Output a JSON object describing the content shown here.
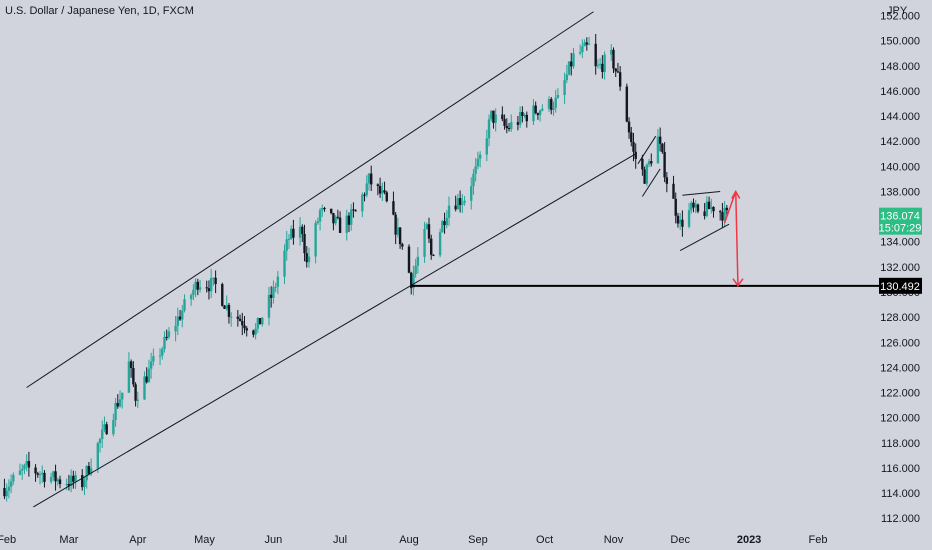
{
  "chart_data": {
    "type": "candlestick",
    "title": "U.S. Dollar / Japanese Yen, 1D, FXCM",
    "currency": "JPY",
    "ylim": [
      111.3,
      152.6
    ],
    "y_ticks": [
      112,
      114,
      116,
      118,
      120,
      122,
      124,
      126,
      128,
      130,
      132,
      134,
      136,
      138,
      140,
      142,
      144,
      146,
      148,
      150,
      152
    ],
    "x_ticks": [
      {
        "label": "Feb",
        "date": "2022-02-01",
        "bold": false
      },
      {
        "label": "Mar",
        "date": "2022-03-01",
        "bold": false
      },
      {
        "label": "Apr",
        "date": "2022-04-01",
        "bold": false
      },
      {
        "label": "May",
        "date": "2022-05-01",
        "bold": false
      },
      {
        "label": "Jun",
        "date": "2022-06-01",
        "bold": false
      },
      {
        "label": "Jul",
        "date": "2022-07-01",
        "bold": false
      },
      {
        "label": "Aug",
        "date": "2022-08-01",
        "bold": false
      },
      {
        "label": "Sep",
        "date": "2022-09-01",
        "bold": false
      },
      {
        "label": "Oct",
        "date": "2022-10-01",
        "bold": false
      },
      {
        "label": "Nov",
        "date": "2022-11-01",
        "bold": false
      },
      {
        "label": "Dec",
        "date": "2022-12-01",
        "bold": false
      },
      {
        "label": "2023",
        "date": "2023-01-01",
        "bold": true
      },
      {
        "label": "Feb",
        "date": "2023-02-01",
        "bold": false
      }
    ],
    "x_range": [
      "2022-01-29",
      "2023-02-28"
    ],
    "price_path": [
      [
        "2022-01-31",
        114.4
      ],
      [
        "2022-02-10",
        116.0
      ],
      [
        "2022-02-25",
        115.0
      ],
      [
        "2022-03-07",
        114.8
      ],
      [
        "2022-03-14",
        117.8
      ],
      [
        "2022-03-25",
        122.0
      ],
      [
        "2022-03-28",
        124.3
      ],
      [
        "2022-03-31",
        121.7
      ],
      [
        "2022-04-08",
        124.3
      ],
      [
        "2022-04-20",
        128.2
      ],
      [
        "2022-04-28",
        130.8
      ],
      [
        "2022-05-06",
        130.5
      ],
      [
        "2022-05-12",
        128.5
      ],
      [
        "2022-05-24",
        126.9
      ],
      [
        "2022-06-01",
        130.0
      ],
      [
        "2022-06-08",
        134.3
      ],
      [
        "2022-06-14",
        135.0
      ],
      [
        "2022-06-16",
        132.2
      ],
      [
        "2022-06-22",
        136.4
      ],
      [
        "2022-07-01",
        135.2
      ],
      [
        "2022-07-08",
        136.3
      ],
      [
        "2022-07-14",
        138.9
      ],
      [
        "2022-07-21",
        137.4
      ],
      [
        "2022-07-28",
        134.2
      ],
      [
        "2022-08-02",
        130.9
      ],
      [
        "2022-08-09",
        135.0
      ],
      [
        "2022-08-11",
        132.9
      ],
      [
        "2022-08-19",
        137.0
      ],
      [
        "2022-08-26",
        137.5
      ],
      [
        "2022-09-01",
        140.0
      ],
      [
        "2022-09-07",
        144.0
      ],
      [
        "2022-09-14",
        143.0
      ],
      [
        "2022-09-22",
        144.0
      ],
      [
        "2022-09-30",
        144.7
      ],
      [
        "2022-10-07",
        145.2
      ],
      [
        "2022-10-14",
        148.7
      ],
      [
        "2022-10-21",
        149.5
      ],
      [
        "2022-10-24",
        147.7
      ],
      [
        "2022-10-31",
        148.7
      ],
      [
        "2022-11-04",
        146.6
      ],
      [
        "2022-11-10",
        141.0
      ],
      [
        "2022-11-15",
        139.2
      ],
      [
        "2022-11-21",
        142.2
      ],
      [
        "2022-11-25",
        138.9
      ],
      [
        "2022-12-01",
        135.4
      ],
      [
        "2022-12-06",
        136.6
      ],
      [
        "2022-12-09",
        136.2
      ],
      [
        "2022-12-16",
        136.8
      ],
      [
        "2022-12-22",
        136.07
      ]
    ],
    "lines": [
      {
        "name": "channel-upper",
        "from": [
          "2022-02-10",
          122.4
        ],
        "to": [
          "2022-10-23",
          152.3
        ]
      },
      {
        "name": "channel-lower",
        "from": [
          "2022-02-13",
          112.9
        ],
        "to": [
          "2022-11-11",
          141.0
        ]
      },
      {
        "name": "flag-left",
        "from": [
          "2022-11-12",
          140.2
        ],
        "to": [
          "2022-11-20",
          142.4
        ]
      },
      {
        "name": "flag-right",
        "from": [
          "2022-11-14",
          137.6
        ],
        "to": [
          "2022-11-22",
          139.8
        ]
      },
      {
        "name": "pennant-top",
        "from": [
          "2022-12-02",
          137.7
        ],
        "to": [
          "2022-12-19",
          138.0
        ]
      },
      {
        "name": "pennant-bottom",
        "from": [
          "2022-12-01",
          133.3
        ],
        "to": [
          "2022-12-23",
          135.4
        ]
      }
    ],
    "hline": {
      "name": "support-level",
      "value": 130.492,
      "from": "2022-08-02",
      "label": "130.492"
    },
    "arrow": {
      "name": "forecast-arrow",
      "points": [
        [
          "2022-12-21",
          135.5
        ],
        [
          "2022-12-26",
          138.0
        ],
        [
          "2022-12-27",
          130.5
        ]
      ],
      "color": "#f23645"
    },
    "last_price": {
      "value": "136.074",
      "countdown": "15:07:29",
      "color": "#2ebd85"
    },
    "colors": {
      "background": "#d1d4dc",
      "up": "#26a69a",
      "down": "#131722",
      "lines": "#131722"
    }
  }
}
